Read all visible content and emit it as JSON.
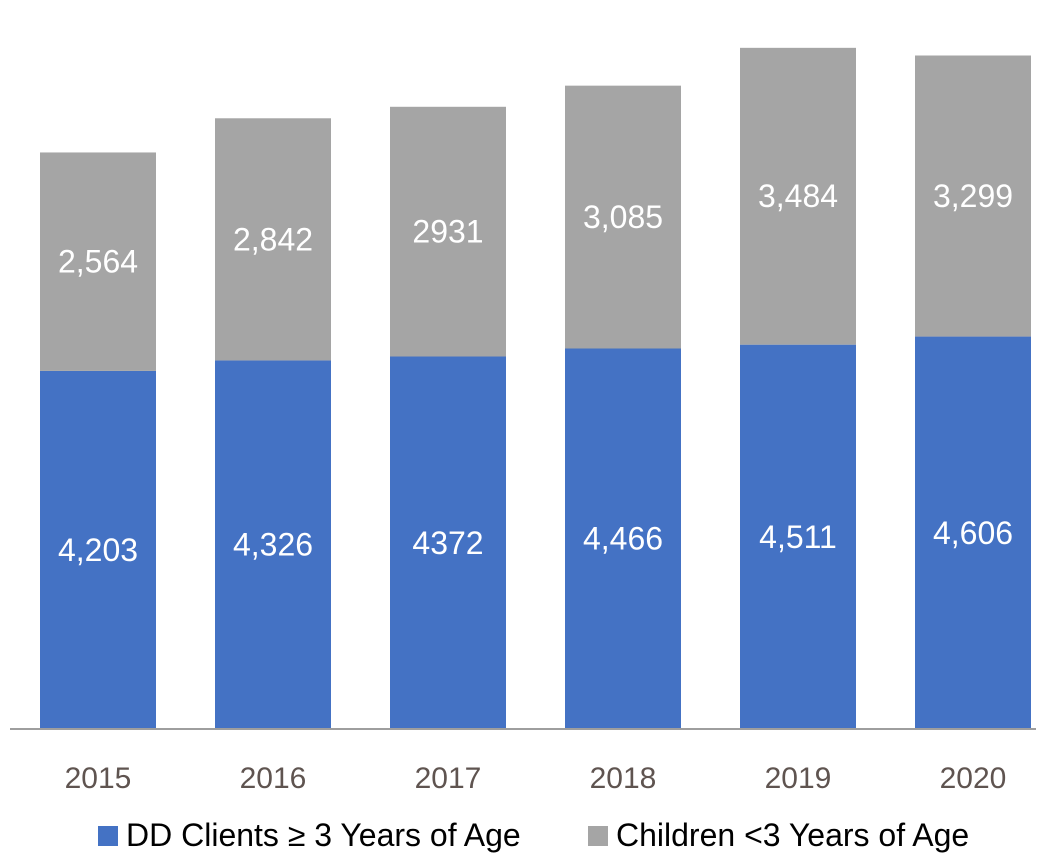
{
  "chart_data": {
    "type": "bar",
    "stacked": true,
    "categories": [
      "2015",
      "2016",
      "2017",
      "2018",
      "2019",
      "2020"
    ],
    "series": [
      {
        "name": "DD Clients ≥ 3 Years of Age",
        "values": [
          4203,
          4326,
          4372,
          4466,
          4511,
          4606
        ],
        "labels": [
          "4,203",
          "4,326",
          "4372",
          "4,466",
          "4,511",
          "4,606"
        ],
        "color": "#4472c4"
      },
      {
        "name": "Children <3 Years of Age",
        "values": [
          2564,
          2842,
          2931,
          3085,
          3484,
          3299
        ],
        "labels": [
          "2,564",
          "2,842",
          "2931",
          "3,085",
          "3,484",
          "3,299"
        ],
        "color": "#a5a5a5"
      }
    ],
    "title": "",
    "xlabel": "",
    "ylabel": "",
    "ylim": [
      0,
      8000
    ],
    "grid": false,
    "legend": "bottom",
    "axis_color": "#9e9e9e",
    "tick_label_color": "#5f5450",
    "data_label_color": "#ffffff"
  }
}
